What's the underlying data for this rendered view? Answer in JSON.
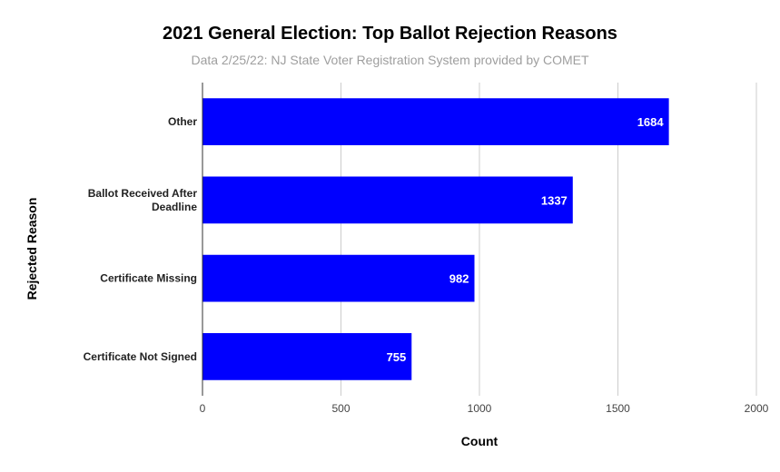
{
  "chart_data": {
    "type": "bar",
    "orientation": "horizontal",
    "title": "2021 General Election: Top Ballot Rejection Reasons",
    "subtitle": "Data 2/25/22: NJ State Voter Registration System provided by COMET",
    "xlabel": "Count",
    "ylabel": "Rejected Reason",
    "categories": [
      [
        "Other"
      ],
      [
        "Ballot Received After",
        "Deadline"
      ],
      [
        "Certificate Missing"
      ],
      [
        "Certificate Not Signed"
      ]
    ],
    "values": [
      1684,
      1337,
      982,
      755
    ],
    "xlim": [
      0,
      2000
    ],
    "x_ticks": [
      0,
      500,
      1000,
      1500,
      2000
    ],
    "grid": "vertical",
    "legend": "none",
    "bar_color": "#0000ff",
    "data_label_color": "#ffffff"
  }
}
